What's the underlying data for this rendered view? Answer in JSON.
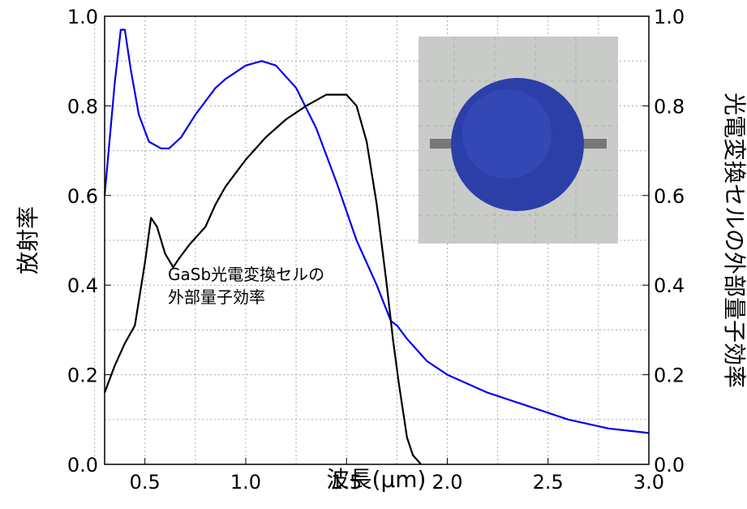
{
  "chart_data": {
    "type": "line",
    "xlabel": "波長(μm)",
    "ylabel": "放射率",
    "y2label": "光電変換セルの外部量子効率",
    "annotation": [
      "GaSb光電変換セルの",
      "外部量子効率"
    ],
    "xlim": [
      0.3,
      3.0
    ],
    "xticks": [
      0.5,
      {
        "value": 1.0,
        "label": "1.0"
      },
      1.5,
      {
        "value": 2.0,
        "label": "2.0"
      },
      2.5,
      {
        "value": 3.0,
        "label": "3.0"
      }
    ],
    "ylim": [
      0.0,
      1.0
    ],
    "yticks": [
      {
        "value": 0.0,
        "label": "0.0"
      },
      0.2,
      0.4,
      0.6,
      0.8,
      {
        "value": 1.0,
        "label": "1.0"
      }
    ],
    "y2lim": [
      0.0,
      1.0
    ],
    "y2ticks": [
      {
        "value": 0.0,
        "label": "0.0"
      },
      0.2,
      0.4,
      0.6,
      0.8,
      {
        "value": 1.0,
        "label": "1.0"
      }
    ],
    "xminor": [
      0.25,
      0.75,
      1.25,
      1.75,
      2.25,
      2.75
    ],
    "yminor": [
      0.1,
      0.3,
      0.5,
      0.7,
      0.9
    ],
    "grid": true,
    "series": [
      {
        "color": "#0000ee",
        "x": [
          0.3,
          0.35,
          0.38,
          0.4,
          0.43,
          0.47,
          0.52,
          0.58,
          0.62,
          0.68,
          0.75,
          0.85,
          0.9,
          1.0,
          1.08,
          1.15,
          1.25,
          1.35,
          1.45,
          1.55,
          1.65,
          1.72,
          1.75,
          1.8,
          1.9,
          2.0,
          2.2,
          2.4,
          2.6,
          2.8,
          3.0
        ],
        "values": [
          0.6,
          0.85,
          0.97,
          0.97,
          0.88,
          0.78,
          0.72,
          0.705,
          0.705,
          0.73,
          0.78,
          0.84,
          0.86,
          0.89,
          0.9,
          0.89,
          0.84,
          0.75,
          0.63,
          0.5,
          0.4,
          0.32,
          0.31,
          0.28,
          0.23,
          0.2,
          0.16,
          0.13,
          0.1,
          0.08,
          0.07
        ]
      },
      {
        "color": "#000000",
        "axis": "y2",
        "x": [
          0.3,
          0.35,
          0.4,
          0.45,
          0.5,
          0.53,
          0.56,
          0.6,
          0.64,
          0.67,
          0.72,
          0.8,
          0.85,
          0.9,
          1.0,
          1.1,
          1.2,
          1.3,
          1.4,
          1.5,
          1.55,
          1.6,
          1.65,
          1.7,
          1.73,
          1.76,
          1.8,
          1.83,
          1.87
        ],
        "values": [
          0.16,
          0.22,
          0.27,
          0.31,
          0.45,
          0.55,
          0.53,
          0.47,
          0.44,
          0.46,
          0.49,
          0.53,
          0.58,
          0.62,
          0.68,
          0.73,
          0.77,
          0.8,
          0.825,
          0.825,
          0.8,
          0.72,
          0.58,
          0.4,
          0.28,
          0.18,
          0.06,
          0.02,
          0.0
        ]
      }
    ]
  }
}
